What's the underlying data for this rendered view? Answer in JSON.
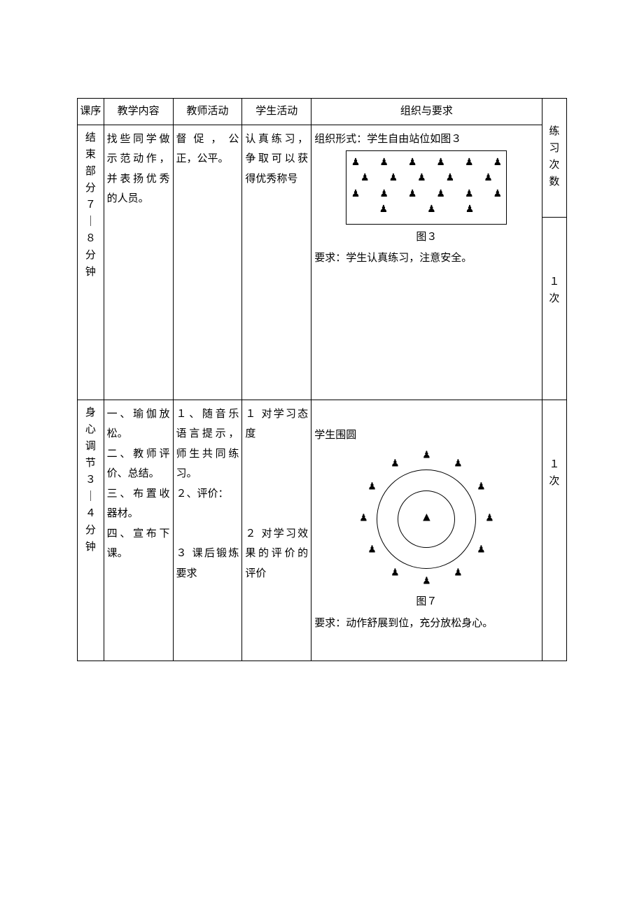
{
  "headers": {
    "seq": "课序",
    "content": "教学内容",
    "teacher": "教师活动",
    "student": "学生活动",
    "org": "组织与要求",
    "count": "练习次数"
  },
  "row1": {
    "seq": "结束部分　７｜８分钟",
    "content": "找些同学做示范动作，并表扬优秀的人员。",
    "teacher": "督促，公正，公平。",
    "student": "认真练习，争取可以获得优秀称号",
    "org_intro": "组织形式：学生自由站位如图３",
    "fig_label": "图３",
    "requirement": "要求：学生认真练习，注意安全。",
    "count": "１次",
    "diagram": {
      "type": "rect-scatter",
      "glyph": "♟",
      "rows": [
        "♟　　♟　　♟　　♟　　♟　　♟",
        "♟　　♟　　♟　　♟　　　♟",
        "♟　　♟　　♟　　♟　　♟　　♟",
        "♟　　　　♟　　　♟"
      ],
      "border_color": "#000000",
      "glyph_color": "#000000"
    }
  },
  "row2": {
    "seq": "身心调节　３｜４分钟",
    "content": "一、瑜伽放松。\n二、教师评价、总结。\n三、布置收器材。\n四、宣布下课。",
    "teacher": "１、随音乐语言提示，师生共同练习。\n２、评价：\n\n\n３ 课后锻炼要求",
    "student": "１ 对学习态度\n\n\n\n\n２ 对学习效果的评价的评价",
    "org_intro": "学生围圆",
    "fig_label": "图７",
    "requirement": "要求：动作舒展到位，充分放松身心。",
    "count": "１次",
    "diagram": {
      "type": "double-circle",
      "outer_radius": 70,
      "inner_radius": 40,
      "center_glyph": "▲",
      "person_glyph": "♟",
      "positions_deg": [
        270,
        300,
        330,
        0,
        30,
        60,
        120,
        150,
        180,
        210,
        240,
        90
      ],
      "ring_radius": 90,
      "border_color": "#000000"
    }
  }
}
